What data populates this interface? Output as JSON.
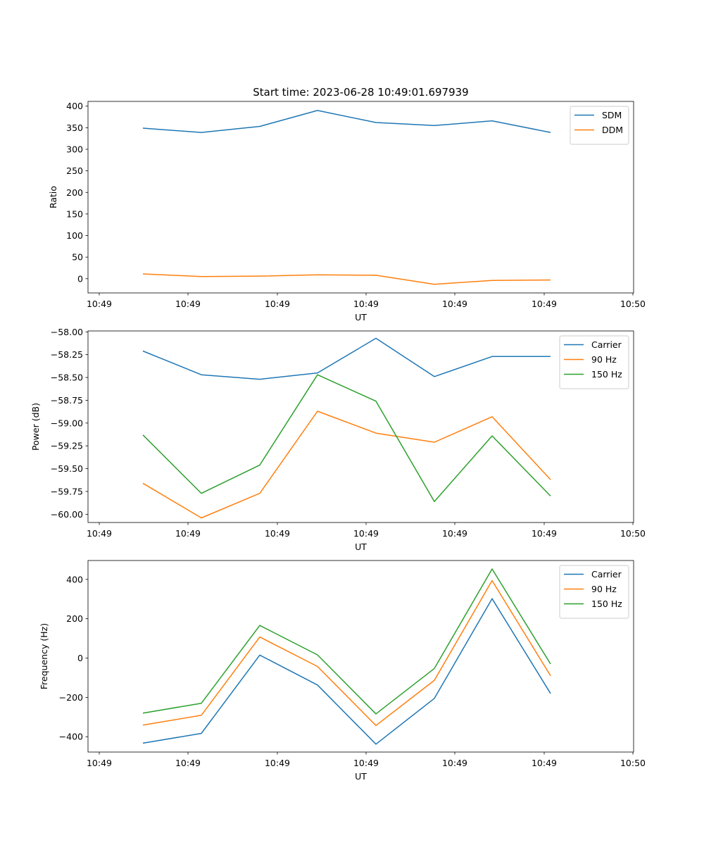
{
  "figure": {
    "title": "Start time: 2023-06-28 10:49:01.697939"
  },
  "chart_data": [
    {
      "type": "line",
      "title": "Start time: 2023-06-28 10:49:01.697939",
      "xlabel": "UT",
      "ylabel": "Ratio",
      "x_tick_labels": [
        "10:49",
        "10:49",
        "10:49",
        "10:49",
        "10:49",
        "10:49",
        "10:49"
      ],
      "x_tick_last_label": "10:50",
      "y_ticks": [
        0,
        50,
        100,
        150,
        200,
        250,
        300,
        350,
        400
      ],
      "y_tick_labels": [
        "0",
        "50",
        "100",
        "150",
        "200",
        "250",
        "300",
        "350",
        "400"
      ],
      "ylim": [
        -33,
        411
      ],
      "legend_position": "top-right",
      "grid": false,
      "series": [
        {
          "name": "SDM",
          "color": "#1f77b4",
          "values": [
            349,
            339,
            353,
            390,
            362,
            355,
            366,
            339
          ]
        },
        {
          "name": "DDM",
          "color": "#ff7f0e",
          "values": [
            11,
            5,
            6,
            9,
            8,
            -13,
            -4,
            -3
          ]
        }
      ]
    },
    {
      "type": "line",
      "title": "",
      "xlabel": "UT",
      "ylabel": "Power (dB)",
      "x_tick_labels": [
        "10:49",
        "10:49",
        "10:49",
        "10:49",
        "10:49",
        "10:49",
        "10:49"
      ],
      "x_tick_last_label": "10:50",
      "y_ticks": [
        -60.0,
        -59.75,
        -59.5,
        -59.25,
        -59.0,
        -58.75,
        -58.5,
        -58.25,
        -58.0
      ],
      "y_tick_labels": [
        "−60.00",
        "−59.75",
        "−59.50",
        "−59.25",
        "−59.00",
        "−58.75",
        "−58.50",
        "−58.25",
        "−58.00"
      ],
      "ylim": [
        -60.09,
        -57.99
      ],
      "legend_position": "top-right",
      "grid": false,
      "series": [
        {
          "name": "Carrier",
          "color": "#1f77b4",
          "values": [
            -58.21,
            -58.47,
            -58.52,
            -58.45,
            -58.07,
            -58.49,
            -58.27,
            -58.27
          ]
        },
        {
          "name": "90 Hz",
          "color": "#ff7f0e",
          "values": [
            -59.66,
            -60.04,
            -59.77,
            -58.87,
            -59.11,
            -59.21,
            -58.93,
            -59.62
          ]
        },
        {
          "name": "150 Hz",
          "color": "#2ca02c",
          "values": [
            -59.13,
            -59.77,
            -59.46,
            -58.47,
            -58.76,
            -59.86,
            -59.14,
            -59.8
          ]
        }
      ]
    },
    {
      "type": "line",
      "title": "",
      "xlabel": "UT",
      "ylabel": "Frequency (Hz)",
      "x_tick_labels": [
        "10:49",
        "10:49",
        "10:49",
        "10:49",
        "10:49",
        "10:49",
        "10:49"
      ],
      "x_tick_last_label": "10:50",
      "y_ticks": [
        -400,
        -200,
        0,
        200,
        400
      ],
      "y_tick_labels": [
        "−400",
        "−200",
        "0",
        "200",
        "400"
      ],
      "ylim": [
        -478,
        496
      ],
      "legend_position": "top-right",
      "grid": false,
      "series": [
        {
          "name": "Carrier",
          "color": "#1f77b4",
          "values": [
            -433,
            -383,
            15,
            -137,
            -438,
            -205,
            302,
            -180
          ]
        },
        {
          "name": "90 Hz",
          "color": "#ff7f0e",
          "values": [
            -341,
            -291,
            107,
            -43,
            -343,
            -113,
            394,
            -90
          ]
        },
        {
          "name": "150 Hz",
          "color": "#2ca02c",
          "values": [
            -280,
            -230,
            166,
            16,
            -284,
            -53,
            453,
            -30
          ]
        }
      ]
    }
  ]
}
